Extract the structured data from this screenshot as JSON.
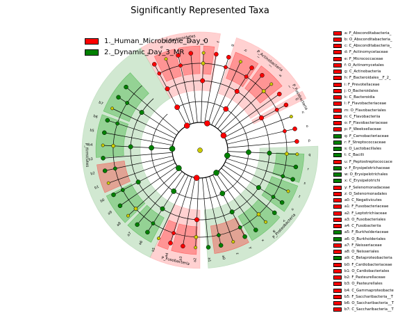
{
  "chart_data": {
    "type": "cladogram",
    "title": "Significantly Represented Taxa",
    "legend": {
      "placement": "top-left",
      "entries": [
        {
          "label": "1._Human_Microbiome_Day_0",
          "color": "#ff0000"
        },
        {
          "label": "2._Dynamic_Day_3_MR",
          "color": "#008000"
        }
      ]
    },
    "clades": [
      {
        "name": "P_Bacteroidetes",
        "group": 1,
        "start": -30,
        "end": 10
      },
      {
        "name": "P_Actinobacteria",
        "group": 1,
        "start": 18,
        "end": 58
      },
      {
        "name": "P_Fusobacteria",
        "group": 1,
        "start": 60,
        "end": 64
      },
      {
        "name": "P_Proteobacteria",
        "group": 2,
        "start": 88,
        "end": 176
      },
      {
        "name": "P_Fusobacteria",
        "group": 1,
        "start": 180,
        "end": 205
      },
      {
        "name": "P_Firmicutes",
        "group": 2,
        "start": 205,
        "end": 330
      }
    ],
    "keys": [
      {
        "id": "a",
        "taxon": "F_Absconditabacteria_",
        "group": 1
      },
      {
        "id": "b",
        "taxon": "O_Absconditabacteria_",
        "group": 1
      },
      {
        "id": "c",
        "taxon": "C_Absconditabacteria_",
        "group": 1
      },
      {
        "id": "d",
        "taxon": "F_Actinomycetaceae",
        "group": 1
      },
      {
        "id": "e",
        "taxon": "F_Micrococcaceae",
        "group": 1
      },
      {
        "id": "f",
        "taxon": "O_Actinomycetales",
        "group": 1
      },
      {
        "id": "g",
        "taxon": "C_Actinobacteria",
        "group": 1
      },
      {
        "id": "h",
        "taxon": "F_Bacteroidales__F_2_",
        "group": 1
      },
      {
        "id": "i",
        "taxon": "F_Prevotellaceae",
        "group": 1
      },
      {
        "id": "j",
        "taxon": "O_Bacteroidales",
        "group": 1
      },
      {
        "id": "k",
        "taxon": "C_Bacteroidia",
        "group": 1
      },
      {
        "id": "l",
        "taxon": "F_Flavobacteriaceae",
        "group": 1
      },
      {
        "id": "m",
        "taxon": "O_Flavobacteriales",
        "group": 1
      },
      {
        "id": "n",
        "taxon": "C_Flavobacteriia",
        "group": 1
      },
      {
        "id": "o",
        "taxon": "F_Flavobacteriaceae",
        "group": 1
      },
      {
        "id": "p",
        "taxon": "F_Weeksellaceae",
        "group": 1
      },
      {
        "id": "q",
        "taxon": "F_Carnobacteriaceae",
        "group": 2
      },
      {
        "id": "r",
        "taxon": "F_Streptococcaceae",
        "group": 2
      },
      {
        "id": "s",
        "taxon": "O_Lactobacillales",
        "group": 2
      },
      {
        "id": "t",
        "taxon": "C_Bacilli",
        "group": 2
      },
      {
        "id": "u",
        "taxon": "F_Peptostreptococcace",
        "group": 1
      },
      {
        "id": "v",
        "taxon": "F_Erysipelotrichaceae",
        "group": 2
      },
      {
        "id": "w",
        "taxon": "O_Erysipelotrichales",
        "group": 2
      },
      {
        "id": "x",
        "taxon": "C_Erysipelotrichi",
        "group": 2
      },
      {
        "id": "y",
        "taxon": "F_Selenomonadaceae",
        "group": 1
      },
      {
        "id": "z",
        "taxon": "O_Selenomonadales",
        "group": 1
      },
      {
        "id": "a0",
        "taxon": "C_Negativicutes",
        "group": 1
      },
      {
        "id": "a1",
        "taxon": "F_Fusobacteriaceae",
        "group": 1
      },
      {
        "id": "a2",
        "taxon": "F_Leptotrichiaceae",
        "group": 1
      },
      {
        "id": "a3",
        "taxon": "O_Fusobacteriales",
        "group": 1
      },
      {
        "id": "a4",
        "taxon": "C_Fusobacteriia",
        "group": 1
      },
      {
        "id": "a5",
        "taxon": "F_Burkholderiaceae",
        "group": 2
      },
      {
        "id": "a6",
        "taxon": "O_Burkholderiales",
        "group": 2
      },
      {
        "id": "a7",
        "taxon": "F_Neisseriaceae",
        "group": 1
      },
      {
        "id": "a8",
        "taxon": "O_Neisseriales",
        "group": 1
      },
      {
        "id": "a9",
        "taxon": "C_Betaproteobacteria",
        "group": 2
      },
      {
        "id": "b0",
        "taxon": "F_Cardiobacteriaceae",
        "group": 1
      },
      {
        "id": "b1",
        "taxon": "O_Cardiobacteriales",
        "group": 1
      },
      {
        "id": "b2",
        "taxon": "F_Pasteurellaceae",
        "group": 1
      },
      {
        "id": "b3",
        "taxon": "O_Pasteurellales",
        "group": 1
      },
      {
        "id": "b4",
        "taxon": "C_Gammaproteobacte",
        "group": 1
      },
      {
        "id": "b5",
        "taxon": "F_Saccharibacteria__T",
        "group": 1
      },
      {
        "id": "b6",
        "taxon": "O_Saccharibacteria__T",
        "group": 1
      },
      {
        "id": "b7",
        "taxon": "C_Saccharibacteria__T",
        "group": 1
      }
    ]
  }
}
